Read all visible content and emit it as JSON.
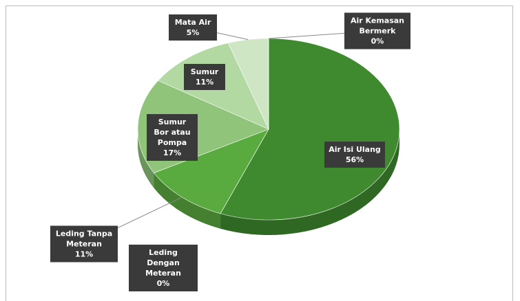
{
  "chart_data": {
    "type": "pie",
    "categories": [
      "Air Isi Ulang",
      "Leding Dengan Meteran",
      "Leding Tanpa Meteran",
      "Sumur Bor atau Pompa",
      "Sumur",
      "Mata Air",
      "Air Kemasan Bermerk"
    ],
    "values": [
      56,
      0,
      11,
      17,
      11,
      5,
      0
    ],
    "value_labels": [
      "56%",
      "0%",
      "11%",
      "17%",
      "11%",
      "5%",
      "0%"
    ],
    "colors": [
      "#3f8a2e",
      "#2f6e22",
      "#5aab3f",
      "#8fc47a",
      "#b3d9a3",
      "#cfe6c4",
      "#e3f0dc"
    ]
  }
}
